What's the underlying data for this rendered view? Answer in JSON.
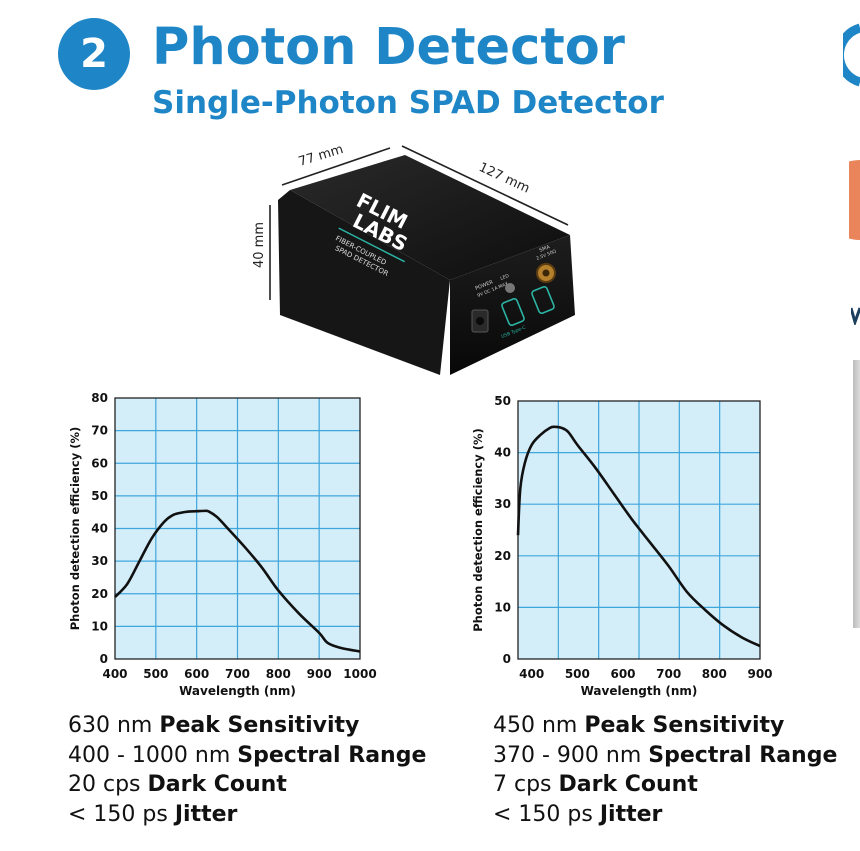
{
  "header": {
    "step_number": "2",
    "title": "Photon Detector",
    "subtitle": "Single-Photon SPAD Detector"
  },
  "product": {
    "dim_width": "77 mm",
    "dim_length": "127 mm",
    "dim_height": "40 mm",
    "logo_line1": "FLIM",
    "logo_line2": "LABS",
    "label_line1": "FIBER-COUPLED",
    "label_line2": "SPAD DETECTOR",
    "port_power": "POWER",
    "port_sma": "SMA",
    "port_usb": "USB Type-C",
    "power_spec": "9V DC  1A MAX",
    "sma_spec": "2.5V 50Ω",
    "status_led": "LED"
  },
  "chart_data": [
    {
      "type": "line",
      "xlabel": "Wavelength (nm)",
      "ylabel": "Photon detection efficiency (%)",
      "xlim": [
        400,
        1000
      ],
      "ylim": [
        0,
        80
      ],
      "xticks": [
        400,
        500,
        600,
        700,
        800,
        900,
        1000
      ],
      "yticks": [
        0,
        10,
        20,
        30,
        40,
        50,
        60,
        70,
        80
      ],
      "grid": true,
      "x": [
        400,
        430,
        460,
        490,
        520,
        540,
        560,
        580,
        600,
        620,
        630,
        650,
        680,
        720,
        760,
        800,
        850,
        900,
        920,
        950,
        1000
      ],
      "y": [
        19,
        23,
        30,
        37,
        42,
        44,
        44.8,
        45.2,
        45.3,
        45.4,
        45.2,
        43.5,
        39.5,
        34,
        28,
        21,
        14,
        8,
        5,
        3.5,
        2.3
      ]
    },
    {
      "type": "line",
      "xlabel": "Wavelength (nm)",
      "ylabel": "Photon detection efficiency (%)",
      "xlim": [
        370,
        900
      ],
      "ylim": [
        0,
        50
      ],
      "xticks": [
        400,
        500,
        600,
        700,
        800,
        900
      ],
      "yticks": [
        0,
        10,
        20,
        30,
        40,
        50
      ],
      "grid": true,
      "x": [
        370,
        375,
        385,
        400,
        420,
        440,
        450,
        465,
        480,
        500,
        540,
        580,
        620,
        660,
        700,
        740,
        780,
        820,
        860,
        900
      ],
      "y": [
        24,
        33,
        38,
        41.5,
        43.5,
        44.8,
        45,
        44.8,
        44,
        41.5,
        37,
        32,
        27,
        22.5,
        18,
        13,
        9.5,
        6.5,
        4.2,
        2.5
      ]
    }
  ],
  "specs_left": [
    {
      "value": "630 nm",
      "label": "Peak Sensitivity"
    },
    {
      "value": "400 - 1000 nm",
      "label": "Spectral Range"
    },
    {
      "value": "20 cps",
      "label": "Dark Count"
    },
    {
      "value": "< 150 ps",
      "label": "Jitter"
    }
  ],
  "specs_right": [
    {
      "value": "450 nm",
      "label": "Peak Sensitivity"
    },
    {
      "value": "370 - 900 nm",
      "label": "Spectral Range"
    },
    {
      "value": "7 cps",
      "label": "Dark Count"
    },
    {
      "value": "< 150 ps",
      "label": "Jitter"
    }
  ],
  "colors": {
    "brand_blue": "#1e86c7",
    "plot_bg": "#d4eef9",
    "grid": "#3fa6dc",
    "curve": "#111111",
    "accent_orange": "#e9845b",
    "device_body": "#141414",
    "port_teal": "#2bb3a3"
  }
}
